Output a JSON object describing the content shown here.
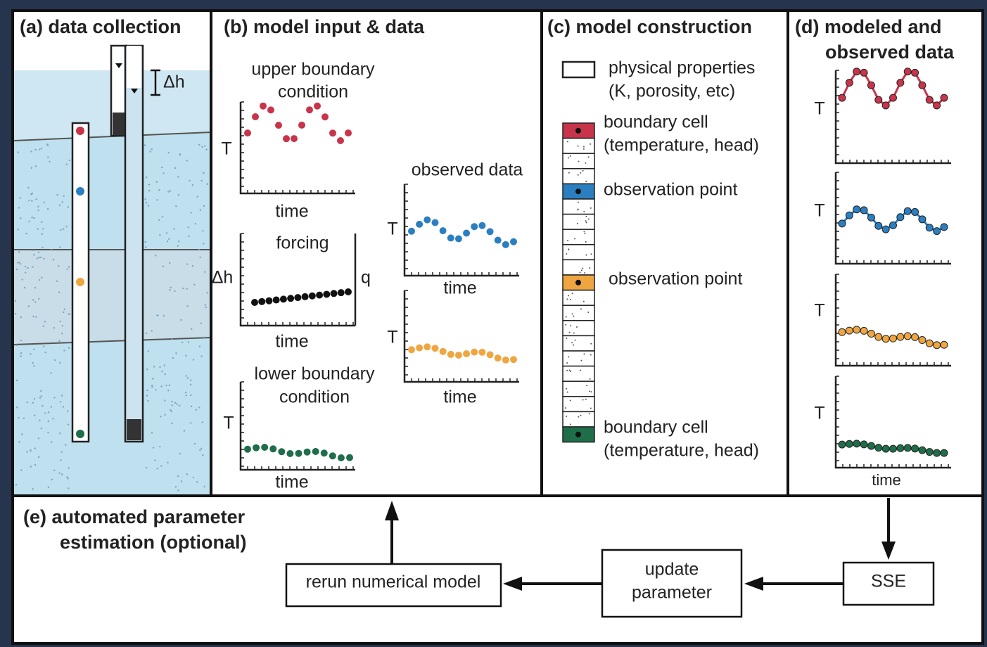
{
  "panel_a": {
    "title": "(a) data collection",
    "delta_h": "Δh"
  },
  "panel_b": {
    "title": "(b) model input & data",
    "upper": {
      "label": [
        "upper boundary",
        "condition"
      ],
      "y_label": "T",
      "x_label": "time"
    },
    "forcing": {
      "label": "forcing",
      "y_label": "Δh",
      "y2_label": "q",
      "x_label": "time"
    },
    "lower": {
      "label": [
        "lower boundary",
        "condition"
      ],
      "y_label": "T",
      "x_label": "time"
    },
    "observed": {
      "label": "observed data",
      "plots": [
        {
          "y_label": "T",
          "x_label": "time"
        },
        {
          "y_label": "T",
          "x_label": "time"
        }
      ]
    }
  },
  "panel_c": {
    "title": "(c) model construction",
    "legend": [
      {
        "lines": [
          "physical properties",
          "(K, porosity, etc)"
        ]
      },
      {
        "lines": [
          "boundary cell",
          "(temperature, head)"
        ]
      },
      {
        "lines": [
          "observation point"
        ]
      },
      {
        "lines": [
          "observation point"
        ]
      },
      {
        "lines": [
          "boundary cell",
          "(temperature, head)"
        ]
      }
    ]
  },
  "panel_d": {
    "title": [
      "(d) modeled and",
      "observed data"
    ],
    "plots": [
      {
        "y_label": "T"
      },
      {
        "y_label": "T"
      },
      {
        "y_label": "T"
      },
      {
        "y_label": "T"
      }
    ],
    "x_label": "time"
  },
  "panel_e": {
    "title": [
      "(e) automated parameter",
      "estimation (optional)"
    ],
    "boxes": {
      "rerun": "rerun numerical model",
      "update": [
        "update",
        "parameter"
      ],
      "sse": "SSE"
    }
  }
}
